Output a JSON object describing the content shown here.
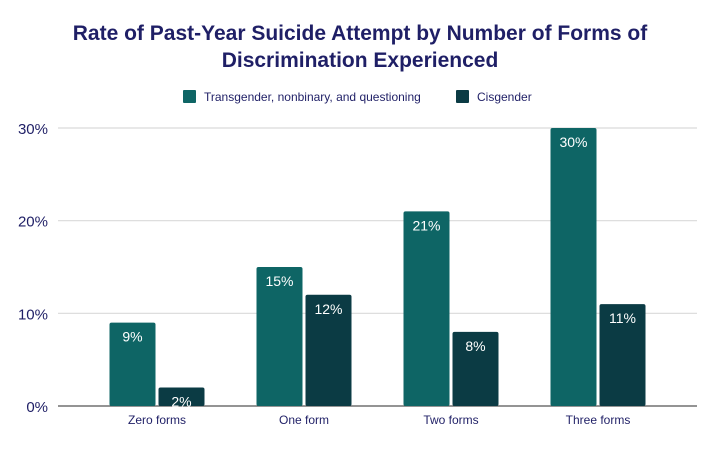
{
  "chart_data": {
    "type": "bar",
    "title": "Rate of Past-Year Suicide Attempt by Number of Forms of Discrimination Experienced",
    "title_lines": [
      "Rate of Past-Year Suicide Attempt by Number of Forms of",
      "Discrimination Experienced"
    ],
    "categories": [
      "Zero forms",
      "One form",
      "Two forms",
      "Three forms"
    ],
    "series": [
      {
        "name": "Transgender, nonbinary, and questioning",
        "values": [
          9,
          15,
          21,
          30
        ],
        "labels": [
          "9%",
          "15%",
          "21%",
          "30%"
        ],
        "color": "#0e6565"
      },
      {
        "name": "Cisgender",
        "values": [
          2,
          12,
          8,
          11
        ],
        "labels": [
          "2%",
          "12%",
          "8%",
          "11%"
        ],
        "color": "#0b3b44"
      }
    ],
    "ylim": [
      0,
      30
    ],
    "yticks": [
      0,
      10,
      20,
      30
    ],
    "ytick_labels": [
      "0%",
      "10%",
      "20%",
      "30%"
    ],
    "grid": true,
    "legend": "top-center",
    "xlabel": "",
    "ylabel": ""
  }
}
